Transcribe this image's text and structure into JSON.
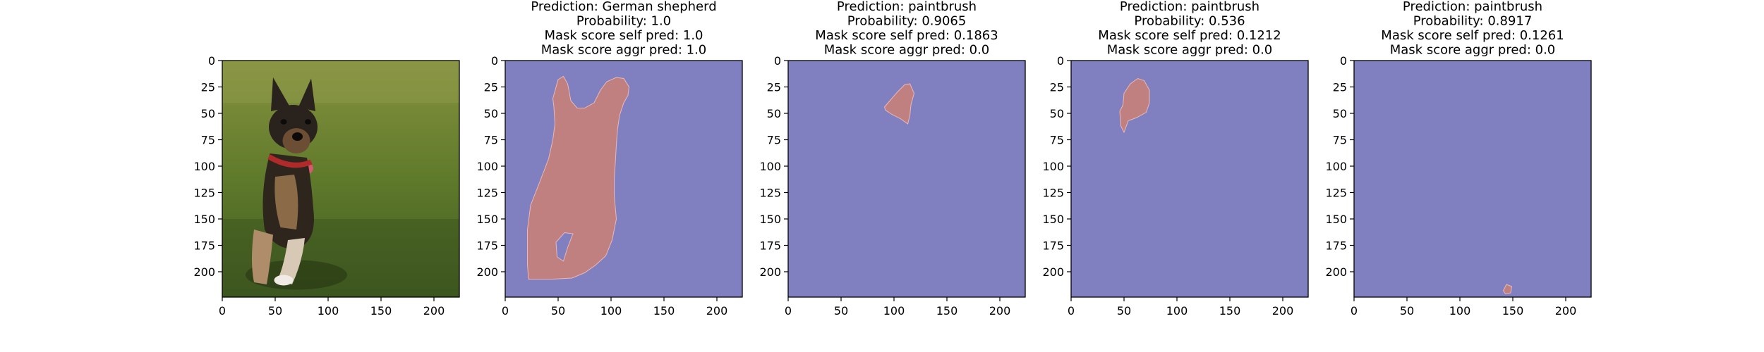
{
  "figure": {
    "x_ticks": [
      "0",
      "50",
      "100",
      "150",
      "200"
    ],
    "y_ticks": [
      "0",
      "25",
      "50",
      "75",
      "100",
      "125",
      "150",
      "175",
      "200"
    ]
  },
  "chart_data": [
    {
      "type": "image",
      "title": [],
      "content": "photo",
      "xlim": [
        0,
        224
      ],
      "ylim": [
        224,
        0
      ],
      "x_ticks": [
        0,
        50,
        100,
        150,
        200
      ],
      "y_ticks": [
        0,
        25,
        50,
        75,
        100,
        125,
        150,
        175,
        200
      ]
    },
    {
      "type": "heatmap",
      "title": [
        "Prediction: German shepherd",
        "Probability: 1.0",
        "Mask score self pred: 1.0",
        "Mask score aggr pred: 1.0"
      ],
      "background_color": "#8080c0",
      "mask_color": "#c08080",
      "xlim": [
        0,
        224
      ],
      "ylim": [
        224,
        0
      ],
      "mask_outline": [
        [
          50,
          18
        ],
        [
          55,
          15
        ],
        [
          59,
          22
        ],
        [
          62,
          38
        ],
        [
          68,
          45
        ],
        [
          75,
          45
        ],
        [
          84,
          40
        ],
        [
          90,
          28
        ],
        [
          96,
          20
        ],
        [
          105,
          16
        ],
        [
          112,
          17
        ],
        [
          117,
          25
        ],
        [
          116,
          33
        ],
        [
          112,
          40
        ],
        [
          108,
          52
        ],
        [
          106,
          66
        ],
        [
          105,
          80
        ],
        [
          104,
          97
        ],
        [
          103,
          112
        ],
        [
          103,
          128
        ],
        [
          105,
          150
        ],
        [
          101,
          170
        ],
        [
          95,
          185
        ],
        [
          85,
          194
        ],
        [
          75,
          201
        ],
        [
          63,
          206
        ],
        [
          45,
          207
        ],
        [
          35,
          207
        ],
        [
          22,
          207
        ],
        [
          21,
          193
        ],
        [
          21,
          160
        ],
        [
          24,
          137
        ],
        [
          33,
          114
        ],
        [
          41,
          93
        ],
        [
          45,
          75
        ],
        [
          47,
          60
        ],
        [
          46,
          44
        ],
        [
          45,
          36
        ]
      ],
      "mask_hole": [
        [
          48,
          172
        ],
        [
          56,
          163
        ],
        [
          64,
          164
        ],
        [
          59,
          177
        ],
        [
          55,
          190
        ],
        [
          49,
          186
        ]
      ]
    },
    {
      "type": "heatmap",
      "title": [
        "Prediction: paintbrush",
        "Probability: 0.9065",
        "Mask score self pred: 0.1863",
        "Mask score aggr pred: 0.0"
      ],
      "background_color": "#8080c0",
      "mask_color": "#c08080",
      "xlim": [
        0,
        224
      ],
      "ylim": [
        224,
        0
      ],
      "mask_outline": [
        [
          91,
          44
        ],
        [
          97,
          37
        ],
        [
          103,
          30
        ],
        [
          110,
          23
        ],
        [
          115,
          22
        ],
        [
          119,
          31
        ],
        [
          116,
          42
        ],
        [
          115,
          52
        ],
        [
          113,
          60
        ],
        [
          106,
          55
        ],
        [
          98,
          51
        ],
        [
          92,
          47
        ]
      ]
    },
    {
      "type": "heatmap",
      "title": [
        "Prediction: paintbrush",
        "Probability: 0.536",
        "Mask score self pred: 0.1212",
        "Mask score aggr pred: 0.0"
      ],
      "background_color": "#8080c0",
      "mask_color": "#c08080",
      "xlim": [
        0,
        224
      ],
      "ylim": [
        224,
        0
      ],
      "mask_outline": [
        [
          50,
          31
        ],
        [
          56,
          22
        ],
        [
          63,
          17
        ],
        [
          69,
          19
        ],
        [
          74,
          28
        ],
        [
          74,
          40
        ],
        [
          71,
          49
        ],
        [
          62,
          54
        ],
        [
          54,
          57
        ],
        [
          50,
          68
        ],
        [
          47,
          62
        ],
        [
          46,
          48
        ],
        [
          49,
          42
        ]
      ]
    },
    {
      "type": "heatmap",
      "title": [
        "Prediction: paintbrush",
        "Probability: 0.8917",
        "Mask score self pred: 0.1261",
        "Mask score aggr pred: 0.0"
      ],
      "background_color": "#8080c0",
      "mask_color": "#c08080",
      "xlim": [
        0,
        224
      ],
      "ylim": [
        224,
        0
      ],
      "mask_outline": [
        [
          141,
          218
        ],
        [
          144,
          212
        ],
        [
          149,
          214
        ],
        [
          148,
          220
        ],
        [
          143,
          221
        ]
      ]
    }
  ]
}
